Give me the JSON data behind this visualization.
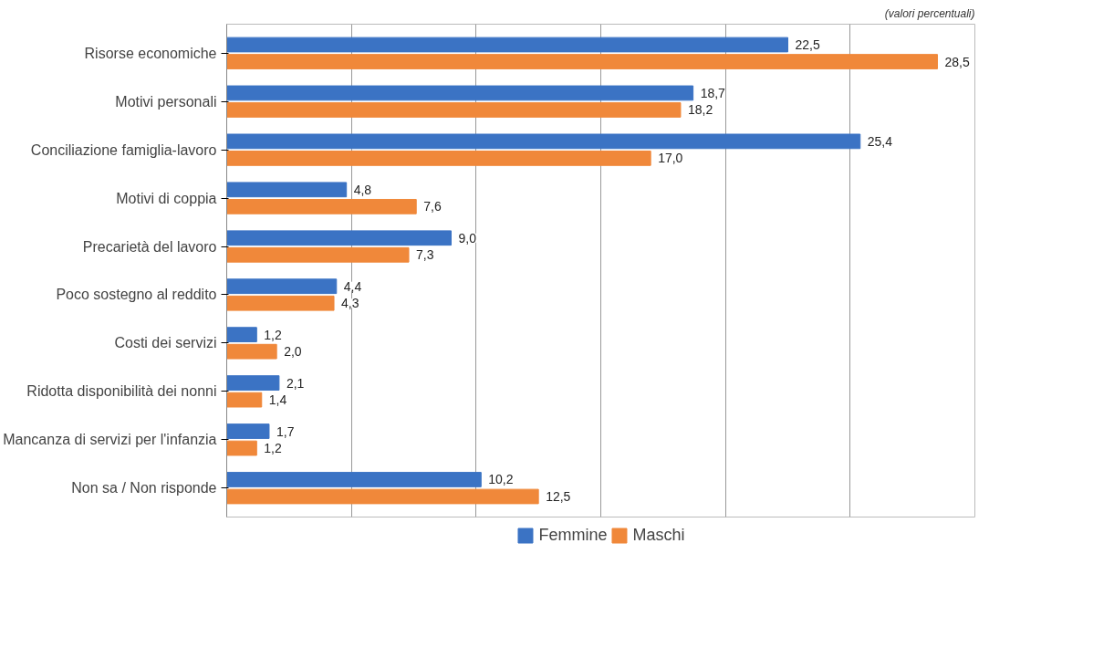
{
  "chart_data": {
    "type": "bar",
    "orientation": "horizontal",
    "categories": [
      "Risorse economiche",
      "Motivi personali",
      "Conciliazione famiglia-lavoro",
      "Motivi di coppia",
      "Precarietà del lavoro",
      "Poco sostegno al reddito",
      "Costi dei servizi",
      "Ridotta disponibilità dei nonni",
      "Mancanza di servizi per l'infanzia",
      "Non sa / Non risponde"
    ],
    "series": [
      {
        "name": "Femmine",
        "color": "#3b73c4",
        "values": [
          22.5,
          18.7,
          25.4,
          4.8,
          9.0,
          4.4,
          1.2,
          2.1,
          1.7,
          10.2
        ],
        "value_labels": [
          "22,5",
          "18,7",
          "25,4",
          "4,8",
          "9,0",
          "4,4",
          "1,2",
          "2,1",
          "1,7",
          "10,2"
        ]
      },
      {
        "name": "Maschi",
        "color": "#f0883a",
        "values": [
          28.5,
          18.2,
          17.0,
          7.6,
          7.3,
          4.3,
          2.0,
          1.4,
          1.2,
          12.5
        ],
        "value_labels": [
          "28,5",
          "18,2",
          "17,0",
          "7,6",
          "7,3",
          "4,3",
          "2,0",
          "1,4",
          "1,2",
          "12,5"
        ]
      }
    ],
    "xlim": [
      0,
      30
    ],
    "xticks": [
      {
        "value": 0,
        "label": null
      },
      {
        "value": 5,
        "label": null
      },
      {
        "value": 10,
        "label": null
      },
      {
        "value": 15,
        "label": null
      },
      {
        "value": 20,
        "label": null
      },
      {
        "value": 25,
        "label": null
      },
      {
        "value": 30,
        "label": null
      }
    ],
    "grid": "x",
    "legend": "bottom",
    "tick_labels": "y",
    "annotations": [
      "(valori percentuali)"
    ]
  }
}
